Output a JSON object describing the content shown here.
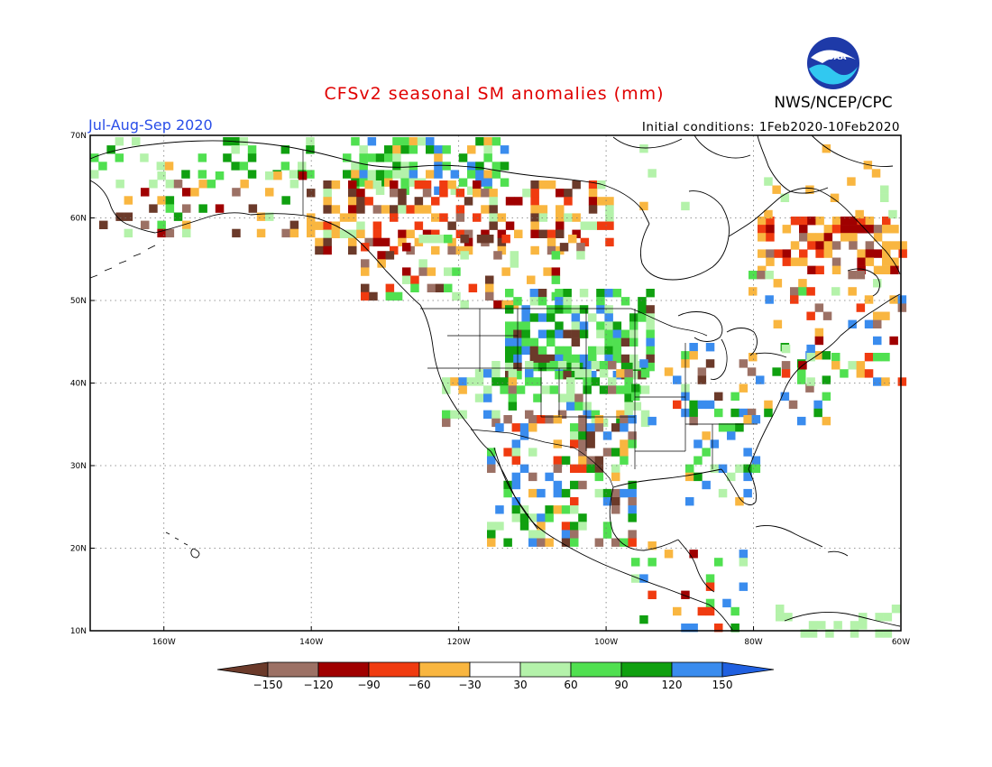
{
  "title": "CFSv2 seasonal SM anomalies (mm)",
  "season": "Jul-Aug-Sep 2020",
  "initial_conditions": "Initial conditions: 1Feb2020-10Feb2020",
  "agency": "NWS/NCEP/CPC",
  "logo_text": "NOAA",
  "map": {
    "lat_labels": [
      "70N",
      "60N",
      "50N",
      "40N",
      "30N",
      "20N",
      "10N"
    ],
    "lon_labels": [
      "160W",
      "140W",
      "120W",
      "100W",
      "80W",
      "60W"
    ],
    "lat_range": [
      10,
      70
    ],
    "lon_range": [
      -170,
      -60
    ]
  },
  "colorbar": {
    "tick_labels": [
      "-150",
      "-120",
      "-90",
      "-60",
      "-30",
      "30",
      "60",
      "90",
      "120",
      "150"
    ],
    "colors": [
      "#6b3a2a",
      "#9c7165",
      "#a00000",
      "#f03b10",
      "#f9b640",
      "#ffffff",
      "#b4f2aa",
      "#50e050",
      "#10a010",
      "#3a8cee",
      "#2060e0"
    ]
  }
}
